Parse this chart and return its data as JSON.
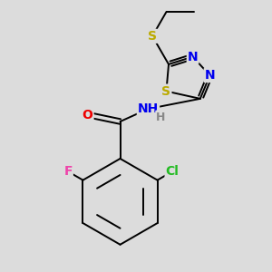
{
  "bg_color": "#dcdcdc",
  "atom_colors": {
    "C": "#000000",
    "N": "#0000ee",
    "O": "#ee0000",
    "S": "#bbaa00",
    "F": "#ee44aa",
    "Cl": "#22bb22",
    "H": "#888888"
  },
  "bond_color": "#000000",
  "bond_lw": 1.4,
  "font_size": 10
}
